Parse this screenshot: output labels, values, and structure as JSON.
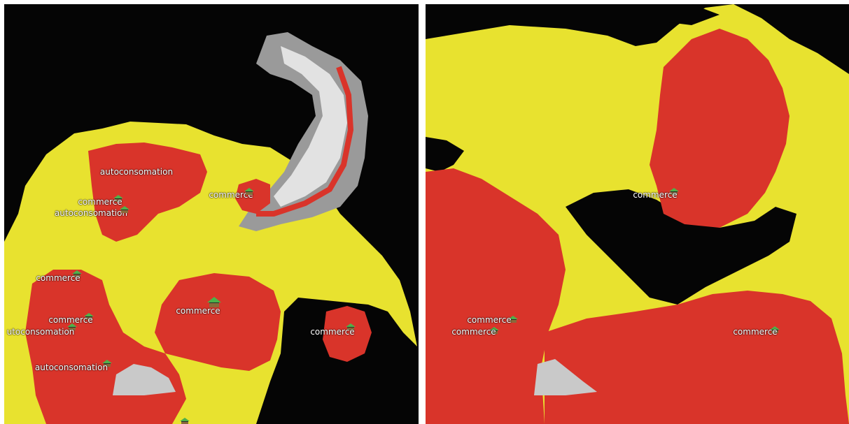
{
  "colors": {
    "background": "#050505",
    "urban_zone": "#e8e22f",
    "dense_zone": "#d9342a",
    "relief": "#bfbfbf",
    "agent_roof": "#4fb04a"
  },
  "left_panel": {
    "labels": [
      {
        "id": "l1",
        "text": "autoconsomation"
      },
      {
        "id": "l2",
        "text": "commerce"
      },
      {
        "id": "l3",
        "text": "commerce"
      },
      {
        "id": "l4",
        "text": "autoconsomation"
      },
      {
        "id": "l5",
        "text": "commerce"
      },
      {
        "id": "l6",
        "text": "commerce"
      },
      {
        "id": "l7",
        "text": "commerce"
      },
      {
        "id": "l8",
        "text": "utoconsomation"
      },
      {
        "id": "l9",
        "text": "commerce"
      },
      {
        "id": "l10",
        "text": "autoconsomation"
      }
    ]
  },
  "right_panel": {
    "labels": [
      {
        "id": "r1",
        "text": "commerce"
      },
      {
        "id": "r2",
        "text": "commerce"
      },
      {
        "id": "r3",
        "text": "commerce"
      },
      {
        "id": "r4",
        "text": "commerce"
      }
    ]
  },
  "agent_icon": "house-icon"
}
